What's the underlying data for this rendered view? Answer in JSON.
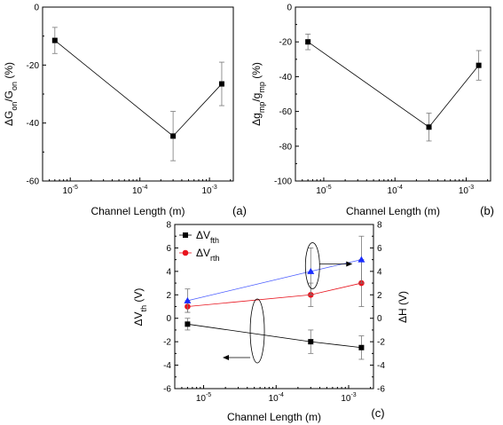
{
  "colors": {
    "axis": "#000000",
    "series_black": "#000000",
    "series_red": "#e8141e",
    "series_blue": "#1a2cff",
    "blue_line": "#4a5cff"
  },
  "chart_data": [
    {
      "type": "line",
      "panel_label": "(a)",
      "xlabel": "Channel Length (m)",
      "ylabel_parts": [
        "ΔG",
        "on",
        "/G",
        "on",
        " (%)"
      ],
      "x_scale": "log",
      "xlim": [
        4e-06,
        0.0022
      ],
      "ylim": [
        -60,
        0
      ],
      "yticks": [
        "0",
        "-20",
        "-40",
        "-60"
      ],
      "ytick_values": [
        0,
        -20,
        -40,
        -60
      ],
      "xtick_values": [
        1e-05,
        0.0001,
        0.001
      ],
      "xticks": [
        {
          "base": "10",
          "exp": "-5"
        },
        {
          "base": "10",
          "exp": "-4"
        },
        {
          "base": "10",
          "exp": "-3"
        }
      ],
      "series": [
        {
          "marker": "square",
          "color": "#000000",
          "x": [
            6e-06,
            0.0003,
            0.0015
          ],
          "y": [
            -11.5,
            -44.5,
            -26.5
          ],
          "err": [
            4.5,
            8.5,
            7.5
          ]
        }
      ]
    },
    {
      "type": "line",
      "panel_label": "(b)",
      "xlabel": "Channel Length (m)",
      "ylabel_parts": [
        "Δg",
        "mp",
        "/g",
        "mp",
        " (%)"
      ],
      "x_scale": "log",
      "xlim": [
        4e-06,
        0.0022
      ],
      "ylim": [
        -100,
        0
      ],
      "yticks": [
        "0",
        "-20",
        "-40",
        "-60",
        "-80",
        "-100"
      ],
      "ytick_values": [
        0,
        -20,
        -40,
        -60,
        -80,
        -100
      ],
      "xtick_values": [
        1e-05,
        0.0001,
        0.001
      ],
      "xticks": [
        {
          "base": "10",
          "exp": "-5"
        },
        {
          "base": "10",
          "exp": "-4"
        },
        {
          "base": "10",
          "exp": "-3"
        }
      ],
      "series": [
        {
          "marker": "square",
          "color": "#000000",
          "x": [
            6e-06,
            0.0003,
            0.0015
          ],
          "y": [
            -20,
            -69,
            -33.5
          ],
          "err": [
            4.5,
            8,
            8.5
          ]
        }
      ]
    },
    {
      "type": "line",
      "panel_label": "(c)",
      "xlabel": "Channel Length (m)",
      "ylabel_parts": [
        "ΔV",
        "th",
        " (V)"
      ],
      "y2label_parts": [
        "ΔH",
        "",
        " (V)"
      ],
      "x_scale": "log",
      "xlim": [
        4e-06,
        0.0022
      ],
      "ylim": [
        -6,
        8
      ],
      "y2lim": [
        -6,
        8
      ],
      "yticks": [
        "8",
        "6",
        "4",
        "2",
        "0",
        "-2",
        "-4",
        "-6"
      ],
      "ytick_values": [
        8,
        6,
        4,
        2,
        0,
        -2,
        -4,
        -6
      ],
      "xtick_values": [
        1e-05,
        0.0001,
        0.001
      ],
      "xticks": [
        {
          "base": "10",
          "exp": "-5"
        },
        {
          "base": "10",
          "exp": "-4"
        },
        {
          "base": "10",
          "exp": "-3"
        }
      ],
      "legend_position": "top-left",
      "legend": [
        {
          "text": "ΔV",
          "sub": "fth",
          "marker": "square",
          "color": "#000000"
        },
        {
          "text": "ΔV",
          "sub": "rth",
          "marker": "circle",
          "color": "#e8141e"
        }
      ],
      "series": [
        {
          "marker": "square",
          "color": "#000000",
          "axis": "left",
          "x": [
            6e-06,
            0.0003,
            0.0015
          ],
          "y": [
            -0.5,
            -2.0,
            -2.5
          ],
          "err": [
            0.5,
            1.0,
            1.0
          ]
        },
        {
          "marker": "circle",
          "color": "#e8141e",
          "axis": "left",
          "x": [
            6e-06,
            0.0003,
            0.0015
          ],
          "y": [
            1.0,
            2.0,
            3.0
          ],
          "err": [
            0.5,
            1.0,
            2.0
          ]
        },
        {
          "marker": "triangle",
          "color": "#1a2cff",
          "axis": "right",
          "x": [
            6e-06,
            0.0003,
            0.0015
          ],
          "y": [
            1.5,
            4.0,
            5.0
          ],
          "err": [
            1.0,
            2.0,
            2.0
          ]
        }
      ]
    }
  ]
}
